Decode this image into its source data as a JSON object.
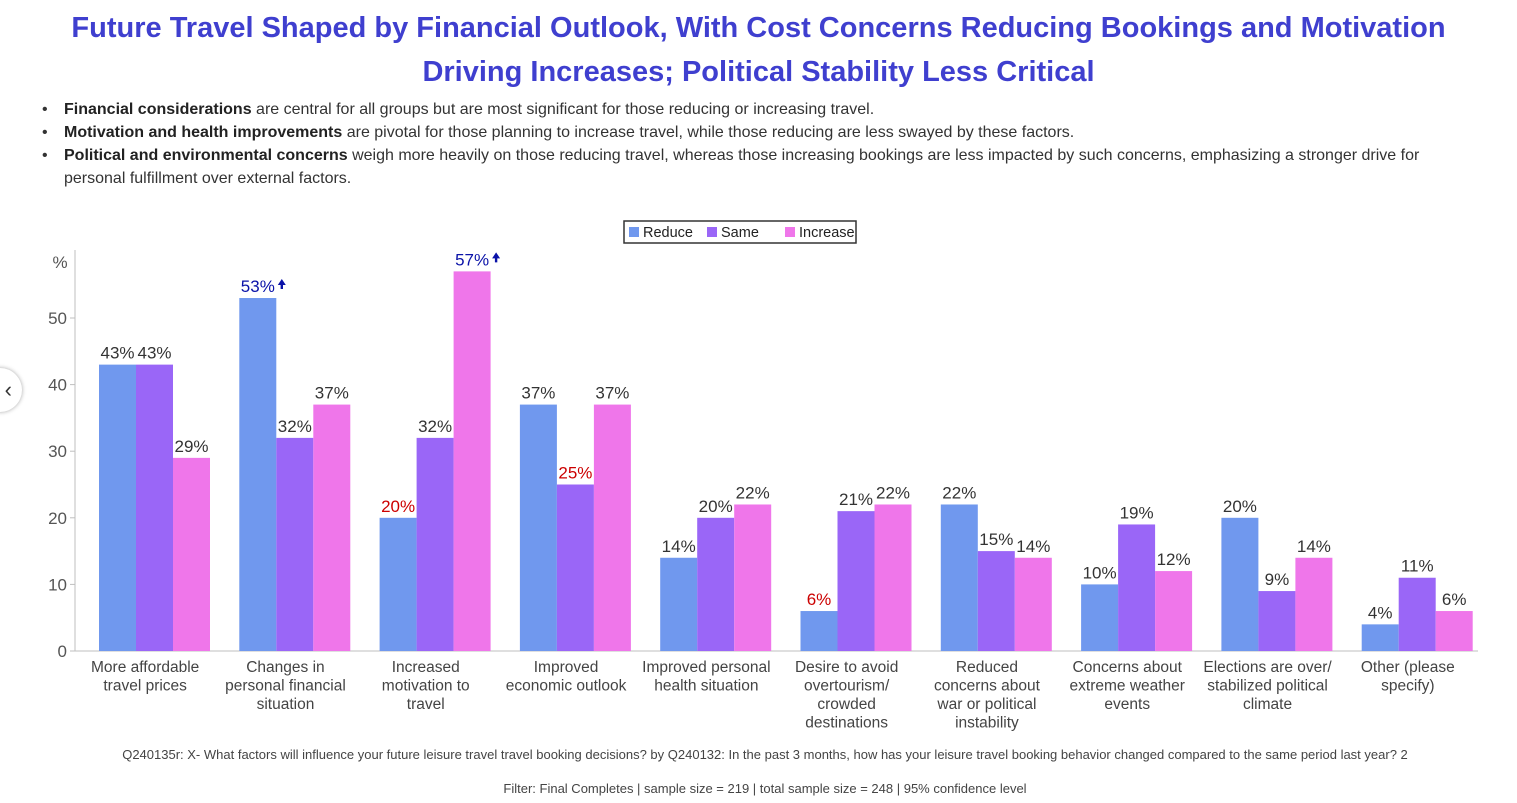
{
  "header": {
    "title_line1": "Future Travel Shaped by Financial Outlook, With Cost Concerns Reducing Bookings and Motivation",
    "title_line2": "Driving Increases; Political Stability Less Critical"
  },
  "bullets": [
    {
      "bold": "Financial considerations",
      "text": " are central for all groups but are most significant for those reducing or increasing travel."
    },
    {
      "bold": "Motivation and health improvements",
      "text": " are pivotal for those planning to increase travel, while those reducing are less swayed by these factors."
    },
    {
      "bold": "Political and environmental concerns",
      "text": " weigh more heavily on those reducing travel, whereas those increasing bookings are less impacted by such concerns, emphasizing a stronger drive for personal fulfillment over external factors."
    }
  ],
  "nav": {
    "prev_icon": "‹"
  },
  "footer": {
    "question": "Q240135r: X- What factors will influence your future leisure travel travel booking decisions? by Q240132: In the past 3 months, how has your leisure travel booking behavior changed compared to the same period last year? 2",
    "filter": "Filter: Final Completes | sample size = 219 | total sample size = 248 | 95% confidence level"
  },
  "colors": {
    "reduce": "#7098ee",
    "same": "#9a66f7",
    "increase": "#ef76ea",
    "sig_up": "#0a12a8",
    "sig_down": "#cc0000",
    "label": "#333333"
  },
  "chart_data": {
    "type": "bar",
    "ylabel": "%",
    "ylim": [
      0,
      57
    ],
    "yticks": [
      0,
      10,
      20,
      30,
      40,
      50
    ],
    "legend_position": "top-center",
    "categories": [
      [
        "More affordable",
        "travel prices"
      ],
      [
        "Changes in",
        "personal financial",
        "situation"
      ],
      [
        "Increased",
        "motivation to",
        "travel"
      ],
      [
        "Improved",
        "economic outlook"
      ],
      [
        "Improved personal",
        "health situation"
      ],
      [
        "Desire to avoid",
        "overtourism/",
        "crowded",
        "destinations"
      ],
      [
        "Reduced",
        "concerns about",
        "war or political",
        "instability"
      ],
      [
        "Concerns about",
        "extreme weather",
        "events"
      ],
      [
        "Elections are over/",
        "stabilized political",
        "climate"
      ],
      [
        "Other (please",
        "specify)"
      ]
    ],
    "series": [
      {
        "name": "Reduce",
        "values": [
          43,
          53,
          20,
          37,
          14,
          6,
          22,
          10,
          20,
          4
        ],
        "labels": [
          "43%",
          "53%",
          "20%",
          "37%",
          "14%",
          "6%",
          "22%",
          "10%",
          "20%",
          "4%"
        ],
        "sig": [
          "",
          "up",
          "down",
          "",
          "",
          "down",
          "",
          "",
          "",
          ""
        ]
      },
      {
        "name": "Same",
        "values": [
          43,
          32,
          32,
          25,
          20,
          21,
          15,
          19,
          9,
          11
        ],
        "labels": [
          "43%",
          "32%",
          "32%",
          "25%",
          "20%",
          "21%",
          "15%",
          "19%",
          "9%",
          "11%"
        ],
        "sig": [
          "",
          "",
          "",
          "down",
          "",
          "",
          "",
          "",
          "",
          ""
        ]
      },
      {
        "name": "Increase",
        "values": [
          29,
          37,
          57,
          37,
          22,
          22,
          14,
          12,
          14,
          6
        ],
        "labels": [
          "29%",
          "37%",
          "57%",
          "37%",
          "22%",
          "22%",
          "14%",
          "12%",
          "14%",
          "6%"
        ],
        "sig": [
          "",
          "",
          "up",
          "",
          "",
          "",
          "",
          "",
          "",
          ""
        ]
      }
    ]
  }
}
